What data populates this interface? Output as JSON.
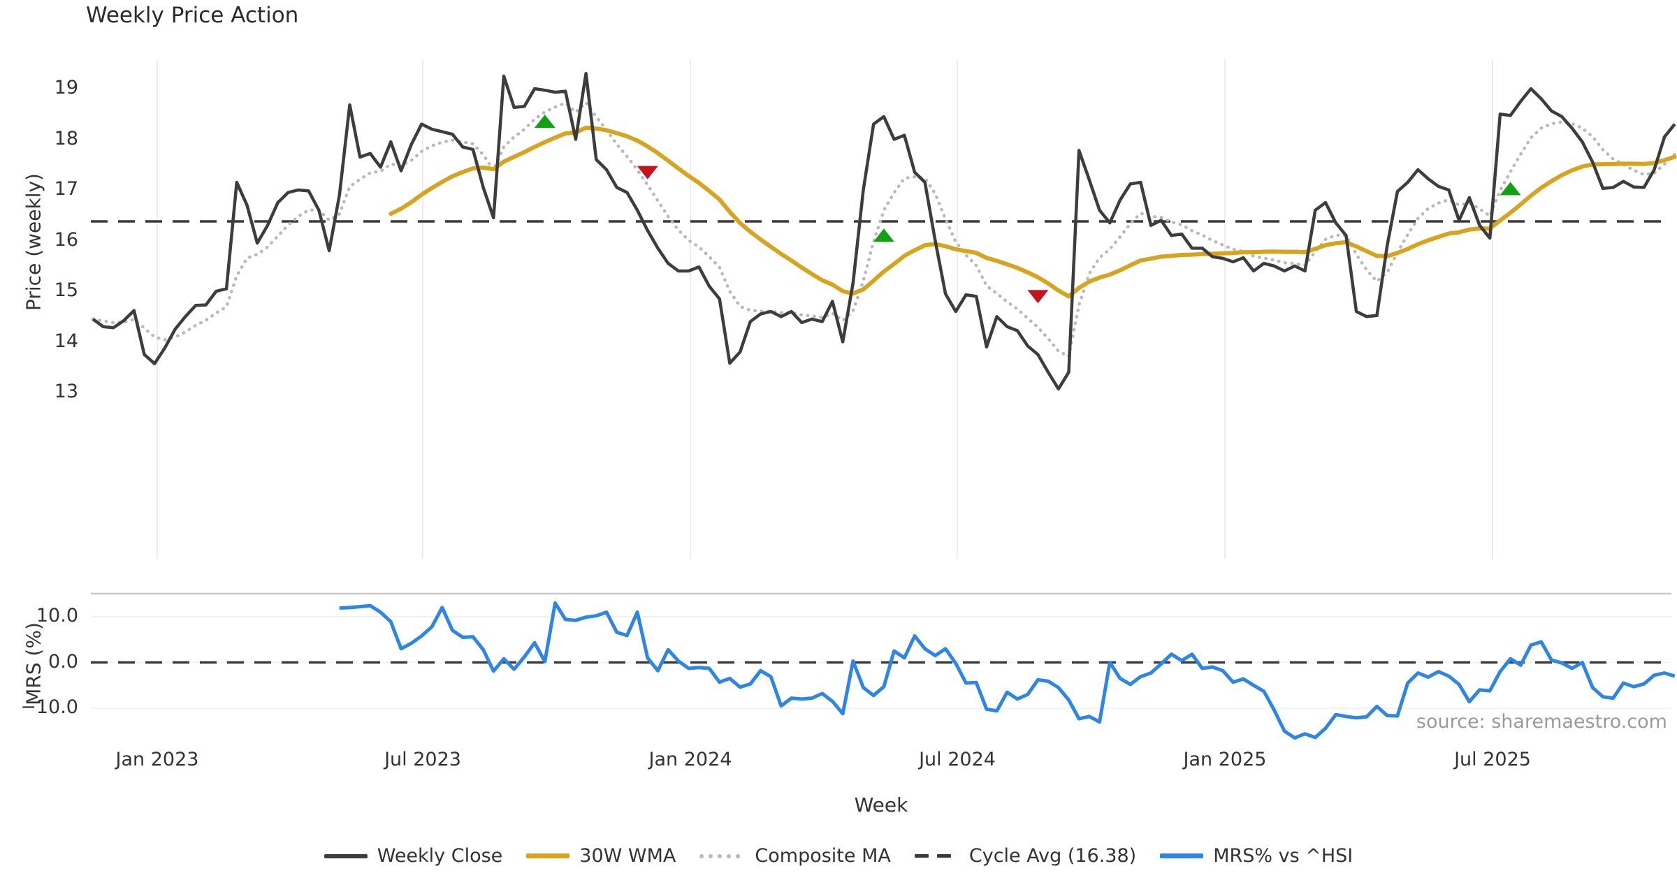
{
  "title": "Weekly Price Action",
  "source": "source: sharemaestro.com",
  "axes": {
    "price_label": "Price (weekly)",
    "mrs_label": "MRS (%)",
    "x_label": "Week",
    "price_ticks": [
      19,
      18,
      17,
      16,
      15,
      14,
      13
    ],
    "mrs_ticks": [
      {
        "label": "10.0",
        "value": 10
      },
      {
        "label": "0.0",
        "value": 0
      },
      {
        "label": "−10.0",
        "value": -10
      }
    ],
    "x_ticks": [
      "Jan 2023",
      "Jul 2023",
      "Jan 2024",
      "Jul 2024",
      "Jan 2025",
      "Jul 2025"
    ]
  },
  "colors": {
    "close": "#3d3d3d",
    "wma": "#d6a41e",
    "composite": "#b9b9b9",
    "cycle_avg": "#3a3a3a",
    "mrs": "#2d86e5",
    "buy_marker": "#14a014",
    "sell_marker": "#c41420",
    "grid": "#ececec",
    "panel_border": "#c8c8c8"
  },
  "legend": [
    {
      "label": "Weekly Close",
      "style": "solid",
      "color": "#3d3d3d"
    },
    {
      "label": "30W WMA",
      "style": "solid-thick",
      "color": "#d6a41e"
    },
    {
      "label": "Composite MA",
      "style": "dotted",
      "color": "#b9b9b9"
    },
    {
      "label": "Cycle Avg (16.38)",
      "style": "dashed",
      "color": "#3a3a3a"
    },
    {
      "label": "MRS% vs ^HSI",
      "style": "solid-thick",
      "color": "#2d86e5"
    }
  ],
  "chart_data": [
    {
      "type": "line",
      "panel": "price",
      "title": "Weekly Price Action",
      "ylabel": "Price (weekly)",
      "yticks": [
        13,
        14,
        15,
        16,
        17,
        18,
        19
      ],
      "ylim": [
        9.7,
        19.6
      ],
      "x_tick_labels": [
        "Jan 2023",
        "Jul 2023",
        "Jan 2024",
        "Jul 2024",
        "Jan 2025",
        "Jul 2025"
      ],
      "grid": "vertical-only",
      "cycle_avg": 16.38,
      "series": [
        {
          "name": "Weekly Close",
          "start_week": 0,
          "values": [
            14.45,
            14.3,
            14.28,
            14.42,
            14.62,
            13.75,
            13.57,
            13.88,
            14.25,
            14.5,
            14.72,
            14.73,
            15.0,
            15.05,
            17.15,
            16.7,
            15.95,
            16.3,
            16.75,
            16.95,
            17.0,
            16.98,
            16.6,
            15.8,
            16.9,
            18.68,
            17.65,
            17.72,
            17.45,
            17.95,
            17.38,
            17.9,
            18.3,
            18.2,
            18.15,
            18.1,
            17.85,
            17.8,
            17.05,
            16.45,
            19.25,
            18.63,
            18.65,
            19.0,
            18.97,
            18.93,
            18.95,
            18.0,
            19.3,
            17.6,
            17.4,
            17.05,
            16.95,
            16.6,
            16.2,
            15.85,
            15.55,
            15.4,
            15.4,
            15.48,
            15.1,
            14.85,
            13.58,
            13.8,
            14.4,
            14.55,
            14.6,
            14.5,
            14.6,
            14.38,
            14.45,
            14.4,
            14.8,
            14.0,
            15.16,
            17.0,
            18.3,
            18.45,
            18.0,
            18.08,
            17.35,
            17.15,
            16.0,
            14.95,
            14.6,
            14.93,
            14.9,
            13.9,
            14.5,
            14.3,
            14.22,
            13.92,
            13.75,
            13.4,
            13.07,
            13.4,
            17.78,
            17.2,
            16.6,
            16.35,
            16.8,
            17.12,
            17.15,
            16.3,
            16.4,
            16.1,
            16.13,
            15.85,
            15.85,
            15.68,
            15.65,
            15.58,
            15.66,
            15.4,
            15.55,
            15.5,
            15.4,
            15.5,
            15.4,
            16.6,
            16.75,
            16.35,
            16.1,
            14.6,
            14.5,
            14.52,
            15.9,
            16.97,
            17.15,
            17.4,
            17.22,
            17.07,
            17.0,
            16.4,
            16.85,
            16.3,
            16.05,
            18.5,
            18.47,
            18.75,
            19.0,
            18.8,
            18.56,
            18.45,
            18.22,
            17.95,
            17.55,
            17.03,
            17.05,
            17.17,
            17.06,
            17.05,
            17.4,
            18.05,
            18.3
          ]
        }
      ],
      "derived_series": [
        {
          "name": "30W WMA",
          "method": "weighted-moving-average",
          "window": 30
        },
        {
          "name": "Composite MA",
          "method": "exponential-moving-average",
          "alpha": 0.25
        }
      ],
      "markers": {
        "buy": [
          {
            "week": 44,
            "value": 18.35
          },
          {
            "week": 77,
            "value": 16.1
          },
          {
            "week": 138,
            "value": 17.02
          }
        ],
        "sell": [
          {
            "week": 54,
            "value": 17.35
          },
          {
            "week": 92,
            "value": 14.9
          }
        ]
      }
    },
    {
      "type": "line",
      "panel": "mrs",
      "ylabel": "MRS (%)",
      "yticks": [
        -10.0,
        0.0,
        10.0
      ],
      "ylim": [
        -17.5,
        15.0
      ],
      "zero_line": 0.0,
      "series": [
        {
          "name": "MRS% vs ^HSI",
          "start_week": 24,
          "values": [
            11.9,
            12.0,
            12.2,
            12.4,
            11.0,
            8.9,
            3.0,
            4.2,
            5.8,
            7.8,
            12.0,
            7.0,
            5.5,
            5.6,
            2.8,
            -1.9,
            0.8,
            -1.5,
            1.2,
            4.3,
            0.2,
            13.0,
            9.4,
            9.2,
            9.9,
            10.2,
            11.0,
            6.6,
            5.9,
            11.0,
            1.0,
            -1.8,
            2.8,
            0.3,
            -1.3,
            -1.1,
            -1.3,
            -4.3,
            -3.5,
            -5.4,
            -4.7,
            -1.8,
            -3.1,
            -9.5,
            -7.8,
            -8.0,
            -7.8,
            -6.8,
            -8.5,
            -11.2,
            0.3,
            -5.5,
            -7.2,
            -5.3,
            2.5,
            1.0,
            5.8,
            3.0,
            1.5,
            3.0,
            -0.2,
            -4.5,
            -4.4,
            -10.2,
            -10.6,
            -6.5,
            -8.0,
            -7.0,
            -3.8,
            -4.1,
            -5.5,
            -8.2,
            -12.3,
            -11.8,
            -13.0,
            0.0,
            -3.5,
            -4.8,
            -3.1,
            -2.3,
            -0.3,
            1.8,
            0.4,
            1.8,
            -1.3,
            -1.0,
            -1.8,
            -4.3,
            -3.6,
            -5.0,
            -6.3,
            -10.4,
            -15.0,
            -16.5,
            -15.6,
            -16.4,
            -14.4,
            -11.4,
            -11.8,
            -12.1,
            -11.9,
            -9.6,
            -11.6,
            -11.7,
            -4.5,
            -2.3,
            -3.2,
            -2.0,
            -3.0,
            -4.8,
            -8.6,
            -6.0,
            -6.2,
            -2.0,
            0.8,
            -0.6,
            3.8,
            4.5,
            0.5,
            -0.1,
            -1.3,
            0.0,
            -5.5,
            -7.5,
            -7.8,
            -4.5,
            -5.3,
            -4.7,
            -2.8,
            -2.3,
            -3.0
          ]
        }
      ]
    }
  ]
}
